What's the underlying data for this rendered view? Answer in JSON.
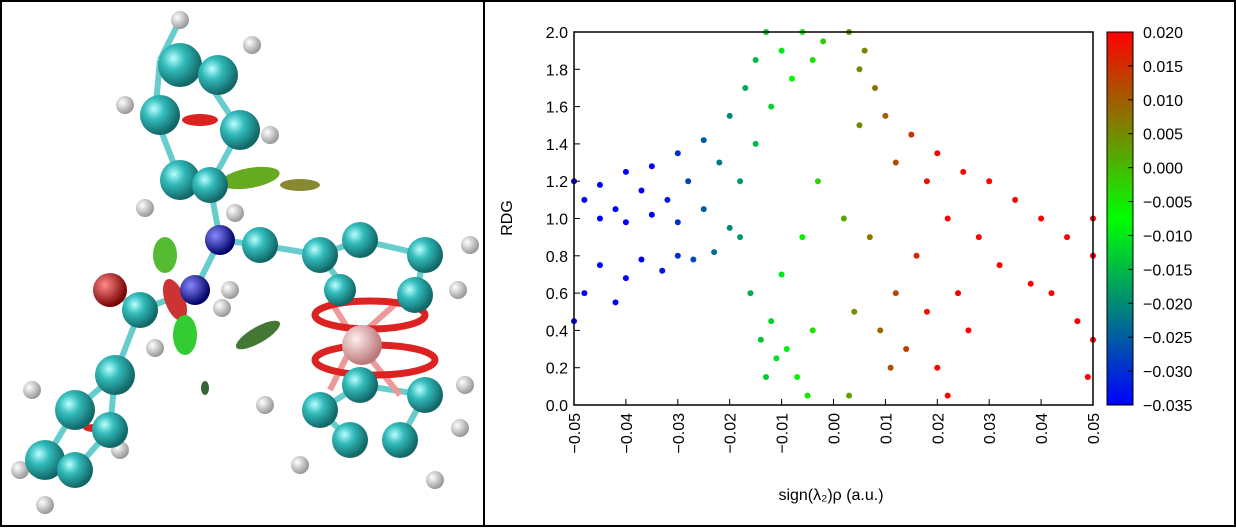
{
  "chart_data": {
    "type": "scatter",
    "xlabel": "sign(λ₂)ρ (a.u.)",
    "ylabel": "RDG",
    "x": [
      -0.05,
      -0.048,
      -0.045,
      -0.045,
      -0.042,
      -0.04,
      -0.04,
      -0.037,
      -0.035,
      -0.035,
      -0.032,
      -0.03,
      -0.03,
      -0.028,
      -0.025,
      -0.025,
      -0.022,
      -0.02,
      -0.02,
      -0.018,
      -0.017,
      -0.015,
      -0.015,
      -0.013,
      -0.012,
      -0.01,
      -0.008,
      -0.006,
      -0.004,
      -0.002,
      -0.05,
      -0.048,
      -0.045,
      -0.042,
      -0.04,
      -0.037,
      -0.033,
      -0.03,
      -0.027,
      -0.023,
      -0.018,
      -0.016,
      -0.014,
      -0.013,
      -0.012,
      -0.011,
      -0.01,
      -0.009,
      -0.007,
      -0.006,
      -0.005,
      -0.004,
      -0.003,
      0.002,
      0.003,
      0.004,
      0.005,
      0.006,
      0.007,
      0.009,
      0.011,
      0.012,
      0.014,
      0.016,
      0.018,
      0.02,
      0.022,
      0.024,
      0.026,
      0.003,
      0.005,
      0.008,
      0.01,
      0.012,
      0.015,
      0.018,
      0.02,
      0.022,
      0.025,
      0.028,
      0.03,
      0.032,
      0.035,
      0.038,
      0.04,
      0.042,
      0.045,
      0.047,
      0.05,
      0.05,
      0.05,
      0.049
    ],
    "y": [
      1.2,
      1.1,
      1.0,
      1.18,
      1.05,
      1.25,
      0.98,
      1.15,
      1.28,
      1.02,
      1.1,
      1.35,
      0.98,
      1.2,
      1.42,
      1.05,
      1.3,
      1.55,
      0.95,
      1.2,
      1.7,
      1.4,
      1.85,
      2.0,
      1.6,
      1.9,
      1.75,
      2.0,
      1.85,
      1.95,
      0.45,
      0.6,
      0.75,
      0.55,
      0.68,
      0.78,
      0.72,
      0.8,
      0.78,
      0.82,
      0.9,
      0.6,
      0.35,
      0.15,
      0.45,
      0.25,
      0.7,
      0.3,
      0.15,
      0.9,
      0.05,
      0.4,
      1.2,
      1.0,
      0.05,
      0.5,
      1.5,
      1.9,
      0.9,
      0.4,
      0.2,
      0.6,
      0.3,
      0.8,
      0.5,
      0.2,
      0.05,
      0.6,
      0.4,
      2.0,
      1.8,
      1.7,
      1.55,
      1.3,
      1.45,
      1.2,
      1.35,
      1.0,
      1.25,
      0.9,
      1.2,
      0.75,
      1.1,
      0.65,
      1.0,
      0.6,
      0.9,
      0.45,
      0.8,
      0.35,
      1.0,
      0.15
    ],
    "xlim": [
      -0.05,
      0.05
    ],
    "ylim": [
      0,
      2
    ],
    "xticks": [
      {
        "value": -0.05,
        "label": "−0.05"
      },
      {
        "value": -0.04,
        "label": "−0.04"
      },
      {
        "value": -0.03,
        "label": "−0.03"
      },
      {
        "value": -0.02,
        "label": "−0.02"
      },
      {
        "value": -0.01,
        "label": "−0.01"
      },
      {
        "value": 0,
        "label": "0.00"
      },
      0.01,
      0.02,
      0.03,
      0.04,
      0.05
    ],
    "yticks": [
      {
        "value": 0,
        "label": "0.0"
      },
      0.2,
      0.4,
      0.6,
      0.8,
      {
        "value": 1,
        "label": "1.0"
      },
      1.2,
      1.4,
      1.6,
      1.8,
      {
        "value": 2,
        "label": "2.0"
      }
    ],
    "colorbar": {
      "clim": [
        -0.035,
        0.02
      ],
      "colormap": [
        "#0000ff",
        "#00ff00",
        "#ff0000"
      ],
      "ticks": [
        {
          "value": 0.02,
          "label": "0.020"
        },
        0.015,
        {
          "value": 0.01,
          "label": "0.010"
        },
        0.005,
        {
          "value": 0,
          "label": "0.000"
        },
        {
          "value": -0.005,
          "label": "−0.005"
        },
        {
          "value": -0.01,
          "label": "−0.010"
        },
        {
          "value": -0.015,
          "label": "−0.015"
        },
        {
          "value": -0.02,
          "label": "−0.020"
        },
        {
          "value": -0.025,
          "label": "−0.025"
        },
        {
          "value": -0.03,
          "label": "−0.030"
        },
        {
          "value": -0.035,
          "label": "−0.035"
        }
      ]
    }
  }
}
